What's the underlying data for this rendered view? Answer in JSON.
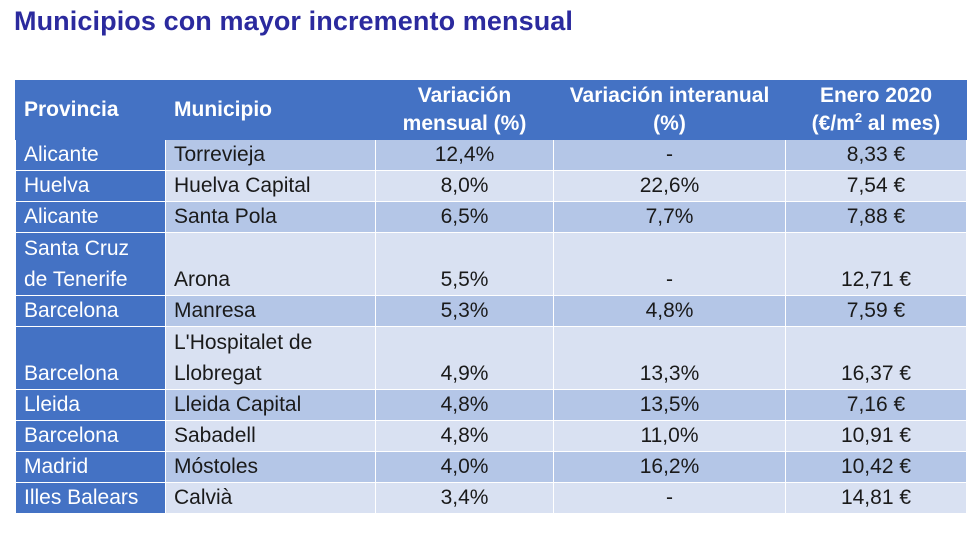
{
  "title": "Municipios con mayor incremento mensual",
  "table": {
    "headers": {
      "provincia": "Provincia",
      "municipio": "Municipio",
      "var_mensual": "Variación mensual (%)",
      "var_interanual": "Variación interanual (%)",
      "enero_line1": "Enero 2020",
      "enero_line2_pre": "(€/m",
      "enero_line2_sup": "2",
      "enero_line2_post": " al mes)"
    },
    "rows": [
      {
        "provincia": "Alicante",
        "municipio": "Torrevieja",
        "mensual": "12,4%",
        "interanual": "-",
        "precio": "8,33 €"
      },
      {
        "provincia": "Huelva",
        "municipio": "Huelva Capital",
        "mensual": "8,0%",
        "interanual": "22,6%",
        "precio": "7,54 €"
      },
      {
        "provincia": "Alicante",
        "municipio": "Santa Pola",
        "mensual": "6,5%",
        "interanual": "7,7%",
        "precio": "7,88 €"
      },
      {
        "provincia": "Santa Cruz de Tenerife",
        "municipio": "Arona",
        "mensual": "5,5%",
        "interanual": "-",
        "precio": "12,71 €"
      },
      {
        "provincia": "Barcelona",
        "municipio": "Manresa",
        "mensual": "5,3%",
        "interanual": "4,8%",
        "precio": "7,59 €"
      },
      {
        "provincia": "Barcelona",
        "municipio": "L'Hospitalet de Llobregat",
        "mensual": "4,9%",
        "interanual": "13,3%",
        "precio": "16,37 €"
      },
      {
        "provincia": "Lleida",
        "municipio": "Lleida Capital",
        "mensual": "4,8%",
        "interanual": "13,5%",
        "precio": "7,16 €"
      },
      {
        "provincia": "Barcelona",
        "municipio": "Sabadell",
        "mensual": "4,8%",
        "interanual": "11,0%",
        "precio": "10,91 €"
      },
      {
        "provincia": "Madrid",
        "municipio": "Móstoles",
        "mensual": "4,0%",
        "interanual": "16,2%",
        "precio": "10,42 €"
      },
      {
        "provincia": "Illes Balears",
        "municipio": "Calvià",
        "mensual": "3,4%",
        "interanual": "-",
        "precio": "14,81 €"
      }
    ]
  }
}
